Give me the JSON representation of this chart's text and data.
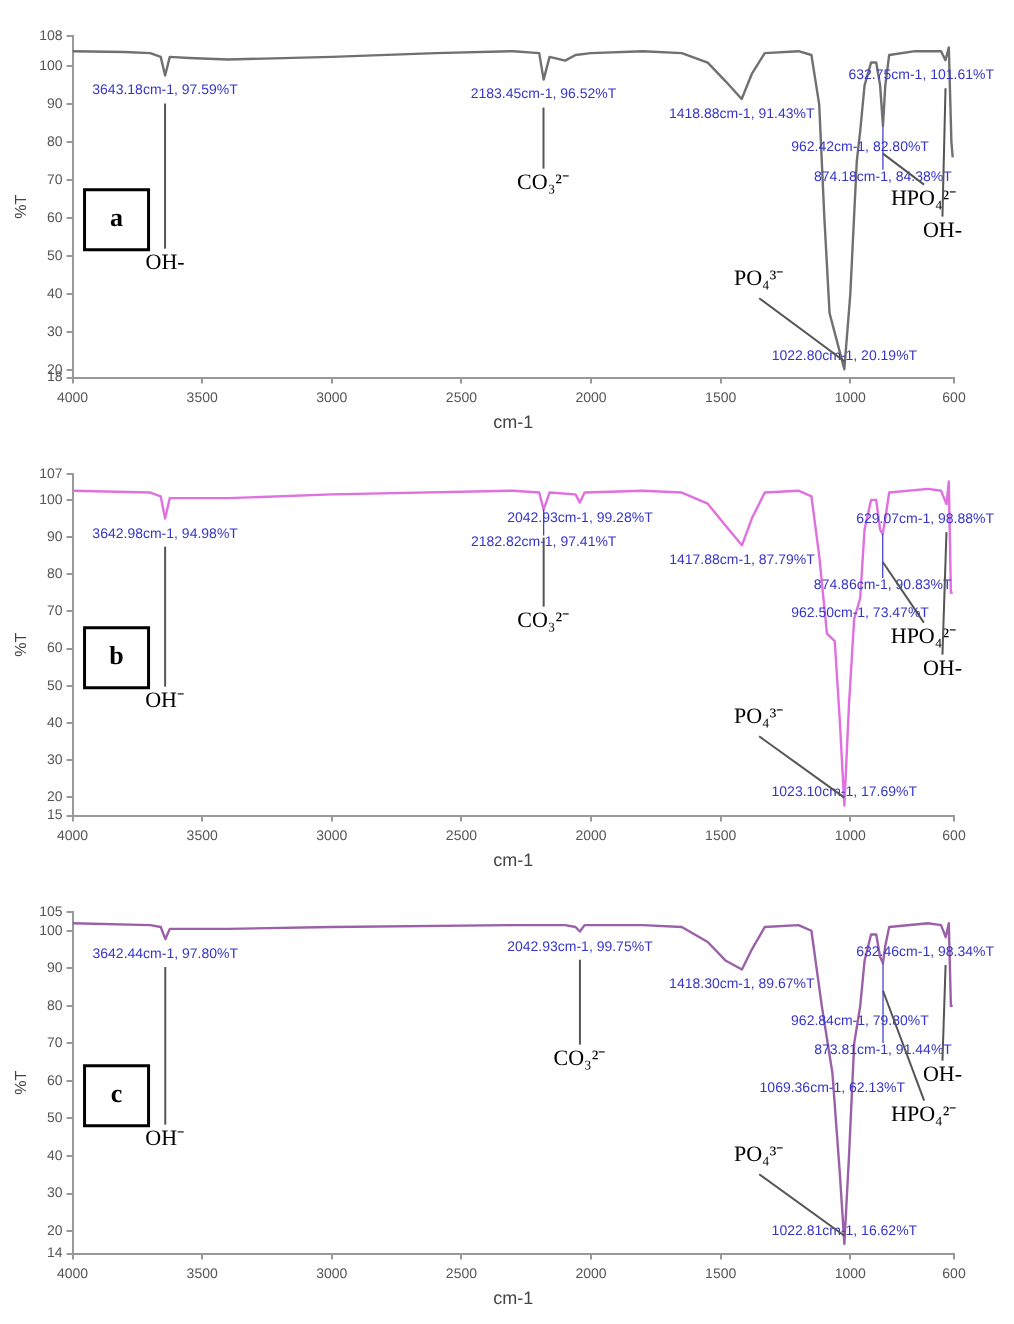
{
  "chart_data": [
    {
      "type": "line",
      "xlabel": "cm-1",
      "ylabel": "%T",
      "xlim": [
        4000,
        600
      ],
      "xticks": [
        4000,
        3500,
        3000,
        2500,
        2000,
        1500,
        1000,
        600
      ],
      "ylim": [
        18,
        108
      ],
      "yticks": [
        18,
        20,
        30,
        40,
        50,
        60,
        70,
        80,
        90,
        100,
        108
      ],
      "x": [
        4000,
        3800,
        3700,
        3660,
        3643,
        3625,
        3550,
        3400,
        3000,
        2600,
        2300,
        2200,
        2183,
        2160,
        2100,
        2060,
        2000,
        1800,
        1650,
        1550,
        1480,
        1419,
        1380,
        1330,
        1200,
        1150,
        1120,
        1100,
        1080,
        1023,
        1000,
        975,
        962,
        945,
        920,
        900,
        885,
        874,
        865,
        850,
        750,
        650,
        633,
        620,
        610,
        605
      ],
      "series": [
        {
          "color": "#707070",
          "values": [
            104,
            103.8,
            103.5,
            102.5,
            97.6,
            102.5,
            102.2,
            101.8,
            102.5,
            103.5,
            104,
            103.5,
            96.5,
            102.5,
            101.5,
            103,
            103.5,
            104,
            103.5,
            101,
            96,
            91.4,
            98,
            103.5,
            104,
            103,
            90,
            60,
            35,
            20.2,
            40,
            75,
            82.8,
            95,
            101,
            101,
            95,
            84.4,
            95,
            103,
            104,
            104,
            101.6,
            105,
            80,
            76
          ]
        }
      ],
      "annotations": [
        "a",
        {
          "text": "3643.18cm-1, 97.59%T",
          "x": 3643.18,
          "y": 97.59
        },
        {
          "text": "2183.45cm-1, 96.52%T",
          "x": 2183.45,
          "y": 96.52
        },
        {
          "text": "1418.88cm-1, 91.43%T",
          "x": 1418.88,
          "y": 91.43
        },
        {
          "text": "962.42cm-1, 82.80%T",
          "x": 962.42,
          "y": 82.8
        },
        {
          "text": "874.18cm-1, 84.38%T",
          "x": 874.18,
          "y": 84.38
        },
        {
          "text": "632.75cm-1, 101.61%T",
          "x": 632.75,
          "y": 101.61
        },
        {
          "text": "1022.80cm-1, 20.19%T",
          "x": 1022.8,
          "y": 20.19
        },
        {
          "text": "OH-",
          "x": 3643.18
        },
        {
          "text": "CO₃²⁻",
          "x": 2183.45
        },
        {
          "text": "PO₄³⁻",
          "x": 1022.8
        },
        {
          "text": "HPO₄²⁻",
          "x": 874.18
        },
        {
          "text": "OH-",
          "x": 632.75
        }
      ]
    },
    {
      "type": "line",
      "xlabel": "cm-1",
      "ylabel": "%T",
      "xlim": [
        4000,
        600
      ],
      "xticks": [
        4000,
        3500,
        3000,
        2500,
        2000,
        1500,
        1000,
        600
      ],
      "ylim": [
        15,
        107
      ],
      "yticks": [
        15,
        20,
        30,
        40,
        50,
        60,
        70,
        80,
        90,
        100,
        107
      ],
      "x": [
        4000,
        3700,
        3660,
        3643,
        3625,
        3400,
        3000,
        2300,
        2200,
        2183,
        2160,
        2060,
        2043,
        2025,
        1800,
        1650,
        1550,
        1480,
        1418,
        1380,
        1330,
        1200,
        1150,
        1120,
        1090,
        1060,
        1040,
        1023,
        1005,
        985,
        962,
        945,
        920,
        900,
        885,
        875,
        865,
        850,
        700,
        650,
        629,
        620,
        612,
        605
      ],
      "series": [
        {
          "color": "#e070e0",
          "values": [
            102.5,
            102,
            101,
            95,
            100.5,
            100.5,
            101.5,
            102.5,
            102,
            97.4,
            102,
            101.5,
            99.3,
            102,
            102.5,
            102,
            99,
            93,
            87.8,
            95,
            102,
            102.5,
            101,
            85,
            64,
            62,
            40,
            17.7,
            45,
            68,
            73.5,
            92,
            100,
            100,
            92,
            90.8,
            95,
            102,
            103,
            102.5,
            98.9,
            105,
            75,
            75
          ]
        }
      ],
      "annotations": [
        "b",
        {
          "text": "3642.98cm-1, 94.98%T",
          "x": 3642.98,
          "y": 94.98
        },
        {
          "text": "2042.93cm-1, 99.28%T",
          "x": 2042.93,
          "y": 99.28
        },
        {
          "text": "2182.82cm-1, 97.41%T",
          "x": 2182.82,
          "y": 97.41
        },
        {
          "text": "1417.88cm-1, 87.79%T",
          "x": 1417.88,
          "y": 87.79
        },
        {
          "text": "962.50cm-1, 73.47%T",
          "x": 962.5,
          "y": 73.47
        },
        {
          "text": "874.86cm-1, 90.83%T",
          "x": 874.86,
          "y": 90.83
        },
        {
          "text": "629.07cm-1, 98.88%T",
          "x": 629.07,
          "y": 98.88
        },
        {
          "text": "1023.10cm-1, 17.69%T",
          "x": 1023.1,
          "y": 17.69
        },
        {
          "text": "OH⁻",
          "x": 3642.98
        },
        {
          "text": "CO₃²⁻",
          "x": 2182.82
        },
        {
          "text": "PO₄³⁻",
          "x": 1023.1
        },
        {
          "text": "HPO₄²⁻",
          "x": 874.86
        },
        {
          "text": "OH-",
          "x": 629.07
        }
      ]
    },
    {
      "type": "line",
      "xlabel": "cm-1",
      "ylabel": "%T",
      "xlim": [
        4000,
        600
      ],
      "xticks": [
        4000,
        3500,
        3000,
        2500,
        2000,
        1500,
        1000,
        600
      ],
      "ylim": [
        14,
        105
      ],
      "yticks": [
        14,
        20,
        30,
        40,
        50,
        60,
        70,
        80,
        90,
        100,
        105
      ],
      "x": [
        4000,
        3700,
        3660,
        3642,
        3625,
        3400,
        3000,
        2300,
        2100,
        2060,
        2043,
        2025,
        1800,
        1650,
        1550,
        1480,
        1418,
        1380,
        1330,
        1200,
        1150,
        1110,
        1069,
        1040,
        1023,
        1005,
        985,
        962,
        945,
        920,
        900,
        885,
        874,
        865,
        850,
        700,
        650,
        632,
        620,
        612,
        605
      ],
      "series": [
        {
          "color": "#9a60a8",
          "values": [
            102,
            101.5,
            101,
            97.8,
            100.5,
            100.5,
            101,
            101.5,
            101.5,
            101,
            99.8,
            101.5,
            101.5,
            101,
            97,
            92,
            89.7,
            95,
            101,
            101.5,
            100,
            80,
            62.1,
            35,
            16.6,
            40,
            70,
            79.8,
            92,
            99,
            99,
            93,
            91.4,
            96,
            101,
            102,
            101.5,
            98.3,
            102,
            80,
            80
          ]
        }
      ],
      "annotations": [
        "c",
        {
          "text": "3642.44cm-1, 97.80%T",
          "x": 3642.44,
          "y": 97.8
        },
        {
          "text": "2042.93cm-1, 99.75%T",
          "x": 2042.93,
          "y": 99.75
        },
        {
          "text": "1418.30cm-1, 89.67%T",
          "x": 1418.3,
          "y": 89.67
        },
        {
          "text": "962.84cm-1, 79.80%T",
          "x": 962.84,
          "y": 79.8
        },
        {
          "text": "1069.36cm-1, 62.13%T",
          "x": 1069.36,
          "y": 62.13
        },
        {
          "text": "873.81cm-1, 91.44%T",
          "x": 873.81,
          "y": 91.44
        },
        {
          "text": "632.46cm-1, 98.34%T",
          "x": 632.46,
          "y": 98.34
        },
        {
          "text": "1022.81cm-1, 16.62%T",
          "x": 1022.81,
          "y": 16.62
        },
        {
          "text": "OH⁻",
          "x": 3642.44
        },
        {
          "text": "CO₃²⁻",
          "x": 2042.93
        },
        {
          "text": "PO₄³⁻",
          "x": 1022.81
        },
        {
          "text": "HPO₄²⁻",
          "x": 873.81
        },
        {
          "text": "OH-",
          "x": 632.46
        }
      ]
    }
  ]
}
